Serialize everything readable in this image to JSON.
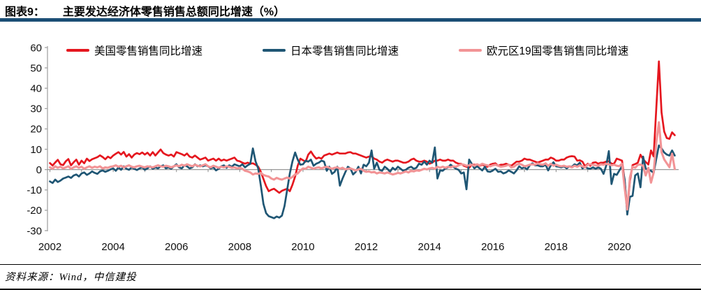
{
  "header": {
    "label": "图表9：",
    "title": "主要发达经济体零售销售总额同比增速（%）"
  },
  "theme": {
    "title_rule_color": "#1b4e75",
    "axis_color": "#a3a3a3",
    "zero_line_color": "#8c8c8c"
  },
  "footer": {
    "source": "资料来源：Wind，中信建投"
  },
  "chart_data": {
    "type": "line",
    "title": "主要发达经济体零售销售总额同比增速（%）",
    "x_unit": "month",
    "x_start": "2002-01",
    "x_end": "2021-10",
    "x_tick_labels": [
      "2002",
      "2004",
      "2006",
      "2008",
      "2010",
      "2012",
      "2014",
      "2016",
      "2018",
      "2020"
    ],
    "y_ticks": [
      60,
      50,
      40,
      30,
      20,
      10,
      0,
      -10,
      -20,
      -30
    ],
    "ylim": [
      -30,
      60
    ],
    "grid": false,
    "legend_position": "top",
    "series": [
      {
        "name": "美国零售销售同比增速",
        "color": "#e5171f",
        "values": [
          3.2,
          2.0,
          3.5,
          4.8,
          2.6,
          2.2,
          4.1,
          5.2,
          2.1,
          3.6,
          4.9,
          2.4,
          4.4,
          3.1,
          5.4,
          4.2,
          5.1,
          5.6,
          6.1,
          7.0,
          6.2,
          5.1,
          6.4,
          5.6,
          6.9,
          7.8,
          8.6,
          7.4,
          8.7,
          6.4,
          7.6,
          5.9,
          7.4,
          8.1,
          7.6,
          8.4,
          7.4,
          8.3,
          6.9,
          8.6,
          6.9,
          8.4,
          9.9,
          8.1,
          7.4,
          6.9,
          7.4,
          6.4,
          8.6,
          8.1,
          7.6,
          6.9,
          7.9,
          6.4,
          5.9,
          6.9,
          5.9,
          4.9,
          5.4,
          5.9,
          4.4,
          4.9,
          5.4,
          4.4,
          5.4,
          4.4,
          4.9,
          4.4,
          4.9,
          5.4,
          5.9,
          4.4,
          4.1,
          3.4,
          2.9,
          3.4,
          2.9,
          3.1,
          2.4,
          1.4,
          -1.1,
          -4.6,
          -8.1,
          -10.6,
          -9.9,
          -9.4,
          -10.4,
          -11.4,
          -10.4,
          -9.9,
          -9.4,
          -10.6,
          -7.4,
          -3.4,
          1.9,
          5.4,
          4.6,
          3.9,
          7.4,
          8.9,
          6.9,
          5.4,
          5.9,
          5.4,
          6.9,
          7.4,
          7.9,
          7.4,
          7.9,
          8.4,
          7.9,
          7.9,
          7.9,
          8.4,
          8.6,
          7.9,
          7.9,
          7.4,
          6.9,
          6.4,
          5.9,
          6.4,
          6.6,
          5.4,
          4.9,
          3.9,
          3.4,
          4.4,
          4.9,
          4.4,
          3.9,
          4.4,
          4.4,
          3.9,
          3.4,
          3.4,
          3.9,
          4.9,
          5.4,
          4.4,
          3.9,
          3.9,
          4.4,
          3.9,
          2.9,
          3.4,
          4.4,
          4.4,
          4.9,
          4.4,
          4.4,
          4.9,
          4.4,
          4.4,
          3.4,
          2.9,
          2.9,
          1.9,
          1.4,
          0.9,
          2.4,
          2.4,
          2.4,
          1.9,
          2.4,
          1.9,
          1.4,
          2.4,
          2.9,
          3.1,
          1.9,
          2.4,
          2.4,
          2.9,
          2.4,
          1.9,
          2.9,
          3.9,
          3.9,
          4.4,
          5.4,
          4.9,
          4.9,
          4.4,
          3.9,
          3.4,
          3.9,
          4.4,
          4.9,
          4.9,
          5.9,
          5.4,
          4.4,
          4.4,
          4.9,
          4.9,
          5.9,
          6.4,
          6.6,
          6.4,
          4.4,
          4.6,
          3.9,
          1.6,
          2.9,
          1.9,
          3.4,
          3.6,
          2.9,
          3.4,
          3.4,
          3.9,
          4.1,
          2.9,
          2.9,
          5.4,
          4.9,
          4.4,
          -5.6,
          -19.9,
          -5.6,
          2.2,
          2.7,
          3.4,
          7.3,
          5.1,
          3.7,
          2.5,
          9.4,
          6.5,
          29.7,
          53.2,
          28.1,
          18.7,
          15.5,
          15.1,
          18.3,
          16.9
        ]
      },
      {
        "name": "日本零售销售同比增速",
        "color": "#1f5674",
        "values": [
          -5.8,
          -6.6,
          -4.9,
          -6.1,
          -5.4,
          -4.4,
          -3.9,
          -3.4,
          -4.1,
          -2.9,
          -2.4,
          -3.4,
          -1.9,
          -1.4,
          -2.6,
          -1.9,
          -0.9,
          -1.6,
          -2.1,
          -0.9,
          -0.4,
          -1.1,
          -0.6,
          0.1,
          0.6,
          -0.6,
          1.1,
          -0.1,
          1.6,
          0.4,
          -0.1,
          1.1,
          0.4,
          -0.2,
          0.6,
          1.1,
          -0.1,
          0.6,
          1.6,
          0.4,
          1.1,
          0.6,
          1.6,
          2.1,
          0.6,
          1.1,
          0.4,
          1.6,
          2.6,
          1.1,
          0.6,
          2.1,
          1.6,
          0.6,
          1.1,
          2.6,
          1.6,
          2.1,
          1.6,
          2.1,
          1.6,
          0.6,
          1.1,
          -0.4,
          0.4,
          1.6,
          2.1,
          0.9,
          2.1,
          1.4,
          2.6,
          2.1,
          1.6,
          2.6,
          1.1,
          2.1,
          2.9,
          10.4,
          4.1,
          0.6,
          -7.9,
          -16.9,
          -21.4,
          -22.9,
          -23.4,
          -23.9,
          -23.1,
          -23.6,
          -22.6,
          -17.9,
          -9.9,
          -1.9,
          4.1,
          8.4,
          4.9,
          2.4,
          2.6,
          4.4,
          3.9,
          4.9,
          1.9,
          2.9,
          3.4,
          4.4,
          3.9,
          -0.6,
          1.4,
          -2.1,
          -1.1,
          1.4,
          -7.9,
          -4.4,
          -1.4,
          1.4,
          0.6,
          -2.4,
          -1.1,
          1.4,
          -1.9,
          2.4,
          1.6,
          3.4,
          9.4,
          0.4,
          3.4,
          -0.1,
          -0.6,
          1.4,
          0.4,
          -1.1,
          0.9,
          -0.1,
          1.4,
          0.4,
          -0.6,
          -0.1,
          0.9,
          1.4,
          0.4,
          0.9,
          2.9,
          2.4,
          3.9,
          2.4,
          4.4,
          3.4,
          10.9,
          -4.4,
          -0.4,
          -0.6,
          0.6,
          1.1,
          2.4,
          1.4,
          0.4,
          -0.1,
          -1.9,
          -1.4,
          -9.7,
          4.9,
          2.9,
          0.6,
          1.6,
          0.6,
          -0.4,
          1.4,
          -0.9,
          -1.1,
          -0.4,
          0.4,
          -1.1,
          -0.9,
          -1.9,
          -1.4,
          -0.4,
          -1.1,
          -1.9,
          -0.4,
          1.6,
          0.6,
          1.1,
          0.1,
          2.1,
          3.1,
          2.1,
          2.1,
          1.6,
          1.6,
          2.4,
          -0.4,
          2.1,
          3.6,
          1.6,
          1.4,
          1.1,
          1.6,
          0.6,
          1.6,
          1.4,
          2.6,
          2.1,
          3.4,
          0.6,
          1.4,
          0.6,
          0.4,
          1.1,
          0.4,
          1.1,
          0.4,
          -2.1,
          1.9,
          9.1,
          -7.1,
          -2.1,
          -2.6,
          -0.4,
          1.6,
          -4.7,
          -22.1,
          -13.4,
          -12.9,
          -2.9,
          -1.9,
          -8.7,
          6.4,
          0.6,
          -0.4,
          -0.6,
          -1.6,
          5.2,
          11.9,
          10.4,
          8.4,
          7.4,
          6.9,
          9.4,
          6.9
        ]
      },
      {
        "name": "欧元区19国零售销售同比增速",
        "color": "#f29496",
        "values": [
          1.1,
          0.4,
          1.6,
          0.9,
          1.4,
          0.6,
          1.1,
          1.6,
          0.4,
          1.1,
          1.6,
          0.9,
          1.4,
          0.4,
          1.1,
          1.6,
          0.9,
          1.4,
          1.1,
          1.6,
          0.6,
          1.1,
          0.9,
          1.4,
          1.6,
          2.1,
          1.4,
          1.9,
          1.1,
          1.6,
          2.1,
          1.4,
          1.1,
          1.6,
          1.9,
          1.4,
          1.1,
          1.6,
          1.4,
          1.1,
          1.6,
          2.1,
          1.6,
          1.4,
          1.9,
          1.6,
          1.1,
          1.6,
          2.1,
          1.6,
          2.4,
          1.9,
          2.6,
          2.1,
          1.6,
          2.4,
          1.9,
          1.6,
          2.1,
          2.6,
          1.6,
          1.1,
          1.9,
          1.4,
          0.9,
          1.4,
          1.1,
          1.6,
          1.4,
          0.9,
          1.1,
          0.6,
          0.9,
          0.4,
          -0.6,
          -0.9,
          -1.4,
          -2.4,
          -1.9,
          -2.1,
          -1.6,
          -2.6,
          -3.1,
          -3.4,
          -4.4,
          -4.9,
          -4.1,
          -4.6,
          -4.9,
          -4.4,
          -3.9,
          -4.4,
          -3.6,
          -2.4,
          -1.9,
          -0.4,
          0.6,
          0.4,
          1.4,
          0.9,
          0.4,
          0.9,
          1.1,
          0.6,
          1.1,
          1.4,
          0.9,
          0.4,
          0.9,
          1.1,
          0.4,
          0.9,
          0.1,
          0.4,
          0.6,
          0.1,
          -0.4,
          0.1,
          0.4,
          -0.6,
          -1.1,
          -0.9,
          -1.4,
          -1.1,
          -1.9,
          -1.4,
          -1.6,
          -1.9,
          -1.4,
          -1.9,
          -2.4,
          -2.1,
          -1.6,
          -1.9,
          -1.4,
          -0.9,
          -1.4,
          -0.6,
          -0.9,
          -0.4,
          -0.6,
          -0.1,
          0.4,
          0.1,
          0.6,
          0.9,
          0.4,
          1.4,
          0.9,
          1.4,
          0.9,
          1.4,
          1.1,
          1.6,
          1.4,
          2.1,
          2.6,
          2.4,
          1.9,
          2.1,
          2.4,
          1.9,
          2.6,
          2.1,
          2.9,
          2.4,
          2.1,
          1.6,
          2.1,
          2.4,
          1.9,
          1.4,
          1.6,
          1.9,
          2.4,
          1.1,
          1.4,
          2.4,
          2.9,
          2.4,
          1.6,
          1.9,
          2.4,
          2.6,
          2.4,
          3.1,
          2.6,
          2.4,
          3.1,
          1.9,
          2.9,
          1.9,
          2.4,
          1.9,
          1.6,
          1.9,
          1.4,
          1.6,
          1.1,
          1.9,
          1.4,
          2.1,
          1.6,
          1.1,
          2.4,
          2.6,
          2.4,
          2.1,
          1.9,
          2.6,
          2.4,
          2.9,
          2.6,
          2.1,
          2.4,
          1.9,
          1.7,
          2.9,
          -8.8,
          -19.6,
          -3.9,
          1.4,
          0.9,
          2.3,
          2.5,
          1.8,
          -2.9,
          0.9,
          -6.4,
          -1.5,
          13.1,
          23.3,
          8.6,
          5.0,
          3.1,
          1.2,
          7.8,
          0.3
        ]
      }
    ]
  }
}
